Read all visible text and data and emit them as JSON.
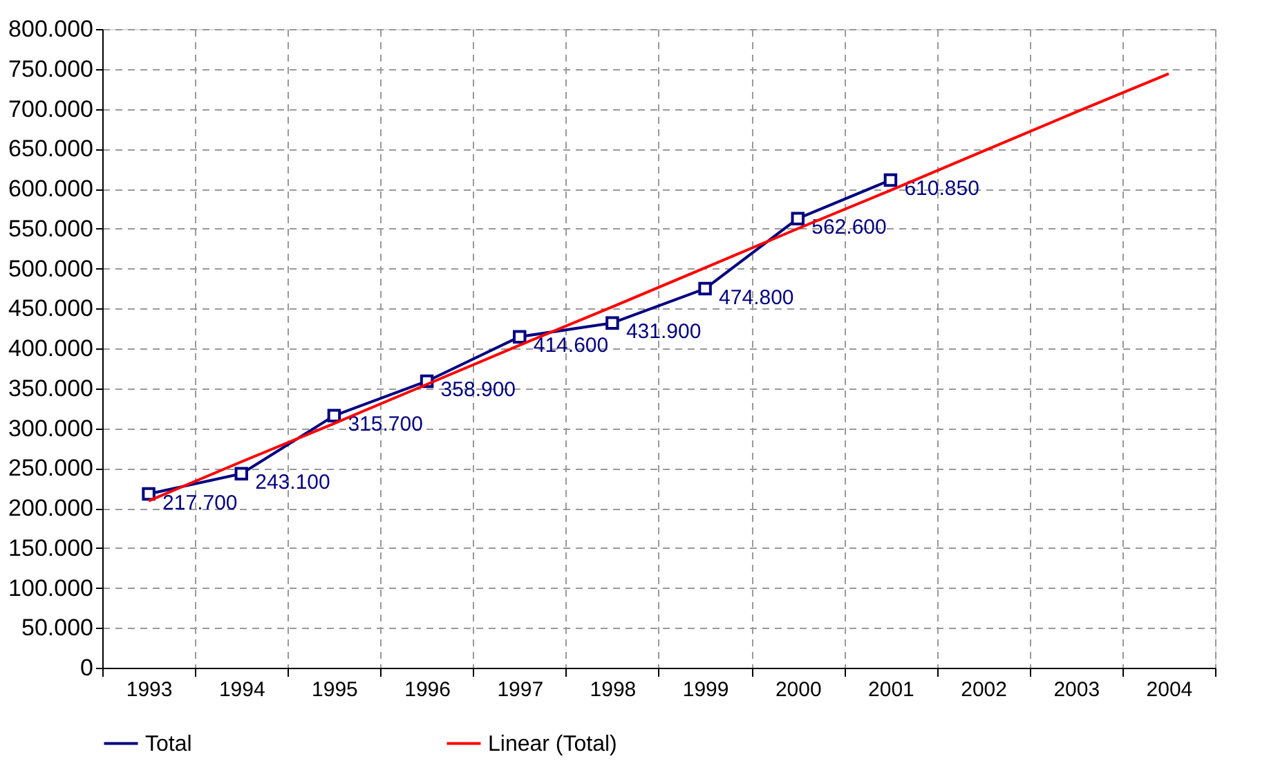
{
  "chart_data": {
    "type": "line",
    "categories": [
      "1993",
      "1994",
      "1995",
      "1996",
      "1997",
      "1998",
      "1999",
      "2000",
      "2001",
      "2002",
      "2003",
      "2004"
    ],
    "series": [
      {
        "name": "Total",
        "color": "#000080",
        "marker": "square",
        "values": [
          217700,
          243100,
          315700,
          358900,
          414600,
          431900,
          474800,
          562600,
          610850,
          null,
          null,
          null
        ],
        "value_labels": [
          "217.700",
          "243.100",
          "315.700",
          "358.900",
          "414.600",
          "431.900",
          "474.800",
          "562.600",
          "610.850",
          null,
          null,
          null
        ]
      },
      {
        "name": "Linear (Total)",
        "color": "#ff0000",
        "marker": "none",
        "values": [
          209000,
          258000,
          306000,
          355000,
          404000,
          452000,
          501000,
          550000,
          598000,
          647000,
          696000,
          744000
        ]
      }
    ],
    "ylim": [
      0,
      800000
    ],
    "yticks": [
      {
        "value": 0,
        "label": "0"
      },
      {
        "value": 50000,
        "label": "50.000"
      },
      {
        "value": 100000,
        "label": "100.000"
      },
      {
        "value": 150000,
        "label": "150.000"
      },
      {
        "value": 200000,
        "label": "200.000"
      },
      {
        "value": 250000,
        "label": "250.000"
      },
      {
        "value": 300000,
        "label": "300.000"
      },
      {
        "value": 350000,
        "label": "350.000"
      },
      {
        "value": 400000,
        "label": "400.000"
      },
      {
        "value": 450000,
        "label": "450.000"
      },
      {
        "value": 500000,
        "label": "500.000"
      },
      {
        "value": 550000,
        "label": "550.000"
      },
      {
        "value": 600000,
        "label": "600.000"
      },
      {
        "value": 650000,
        "label": "650.000"
      },
      {
        "value": 700000,
        "label": "700.000"
      },
      {
        "value": 750000,
        "label": "750.000"
      },
      {
        "value": 800000,
        "label": "800.000"
      }
    ],
    "grid": true,
    "legend": "bottom",
    "line_style": "solid"
  }
}
